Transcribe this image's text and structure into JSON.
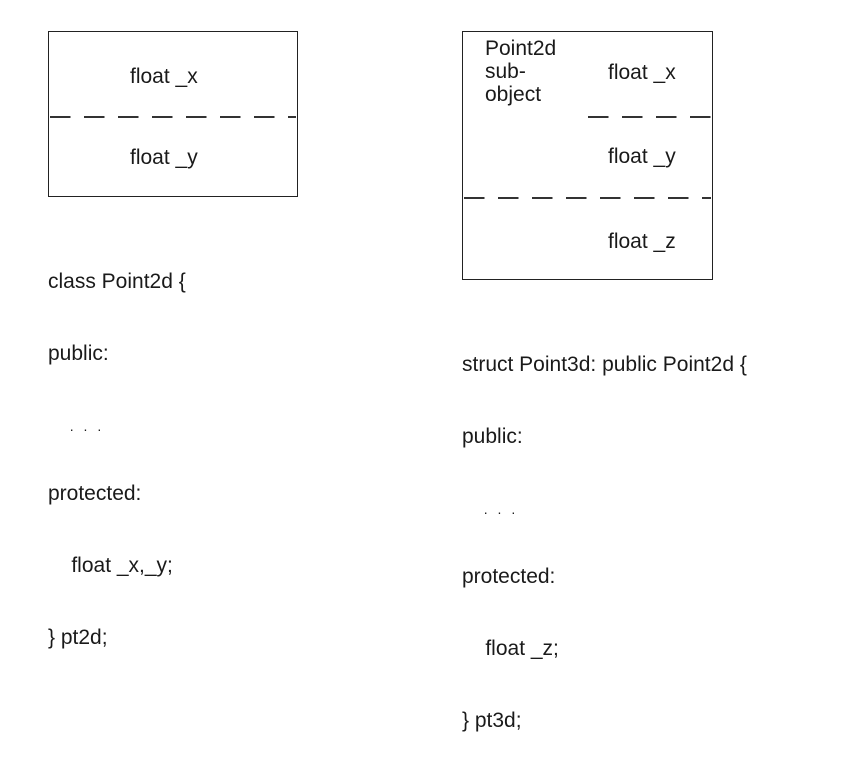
{
  "left": {
    "field_x": "float _x",
    "field_y": "float _y",
    "code": {
      "line1": "class Point2d {",
      "line2": "public:",
      "line3": "  . . .",
      "line4": "protected:",
      "line5": "    float _x,_y;",
      "line6": "} pt2d;"
    }
  },
  "right": {
    "subobject_label_1": "Point2d",
    "subobject_label_2": "sub-",
    "subobject_label_3": "object",
    "field_x": "float _x",
    "field_y": "float _y",
    "field_z": "float _z",
    "code": {
      "line1": "struct Point3d: public Point2d {",
      "line2": "public:",
      "line3": "  . . .",
      "line4": "protected:",
      "line5": "    float _z;",
      "line6": "} pt3d;"
    }
  }
}
